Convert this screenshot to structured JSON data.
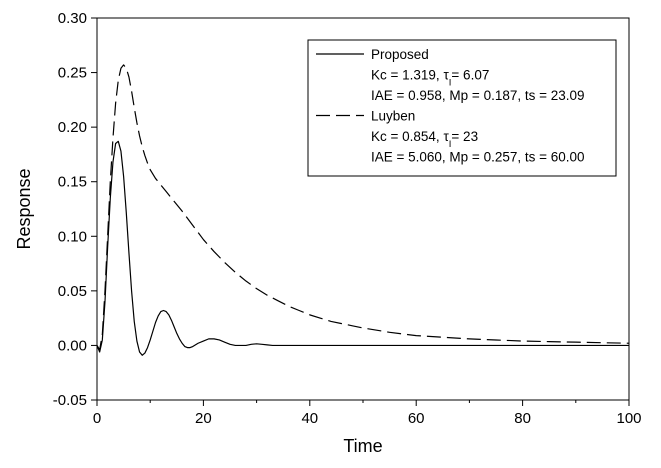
{
  "chart_data": {
    "type": "line",
    "xlabel": "Time",
    "ylabel": "Response",
    "xlim": [
      0,
      100
    ],
    "ylim": [
      -0.05,
      0.3
    ],
    "x_ticks": [
      0,
      20,
      40,
      60,
      80,
      100
    ],
    "y_ticks": [
      -0.05,
      0.0,
      0.05,
      0.1,
      0.15,
      0.2,
      0.25,
      0.3
    ],
    "x_tick_labels": [
      "0",
      "20",
      "40",
      "60",
      "80",
      "100"
    ],
    "y_tick_labels": [
      "-0.05",
      "0.00",
      "0.05",
      "0.10",
      "0.15",
      "0.20",
      "0.25",
      "0.30"
    ],
    "grid": false,
    "legend_position": "top-right",
    "series": [
      {
        "name": "Proposed",
        "style": "solid",
        "color": "#000000",
        "details": [
          {
            "pre": "Kc = 1.319, ",
            "tau": "τ",
            "sub": "I",
            "post": "= 6.07"
          },
          {
            "pre": "IAE = 0.958, Mp = 0.187, ts = 23.09"
          }
        ],
        "x": [
          0,
          0.5,
          1,
          1.5,
          2,
          2.5,
          3,
          3.5,
          4,
          4.5,
          5,
          5.5,
          6,
          6.5,
          7,
          7.5,
          8,
          8.5,
          9,
          9.5,
          10,
          10.5,
          11,
          11.5,
          12,
          12.5,
          13,
          13.5,
          14,
          14.5,
          15,
          15.5,
          16,
          16.5,
          17,
          17.5,
          18,
          19,
          20,
          21,
          22,
          23,
          24,
          25,
          26,
          27,
          28,
          29,
          30,
          31,
          32,
          33,
          34,
          36,
          38,
          40,
          50,
          60,
          70,
          80,
          90,
          100
        ],
        "y": [
          0,
          -0.006,
          0.005,
          0.04,
          0.09,
          0.135,
          0.168,
          0.185,
          0.187,
          0.178,
          0.155,
          0.122,
          0.085,
          0.05,
          0.022,
          0.004,
          -0.006,
          -0.009,
          -0.007,
          -0.002,
          0.005,
          0.013,
          0.021,
          0.027,
          0.031,
          0.032,
          0.031,
          0.028,
          0.023,
          0.017,
          0.011,
          0.006,
          0.002,
          -0.001,
          -0.002,
          -0.002,
          -0.001,
          0.002,
          0.004,
          0.006,
          0.006,
          0.005,
          0.003,
          0.001,
          0.0,
          0.0,
          0.0,
          0.001,
          0.0015,
          0.001,
          0.0005,
          0.0,
          0.0,
          0.0,
          0.0,
          0.0,
          0.0,
          0.0,
          0.0,
          0.0,
          0.0,
          0.0
        ]
      },
      {
        "name": "Luyben",
        "style": "dashed",
        "color": "#000000",
        "details": [
          {
            "pre": "Kc = 0.854, ",
            "tau": "τ",
            "sub": "I",
            "post": "= 23"
          },
          {
            "pre": "IAE = 5.060, Mp = 0.257, ts = 60.00"
          }
        ],
        "x": [
          0,
          0.5,
          1,
          1.5,
          2,
          2.5,
          3,
          3.5,
          4,
          4.5,
          5,
          5.5,
          6,
          6.5,
          7,
          7.5,
          8,
          8.5,
          9,
          9.5,
          10,
          11,
          12,
          13,
          14,
          15,
          16,
          18,
          20,
          22,
          24,
          26,
          28,
          30,
          32,
          34,
          36,
          38,
          40,
          42,
          44,
          46,
          48,
          50,
          55,
          60,
          65,
          70,
          75,
          80,
          85,
          90,
          95,
          100
        ],
        "y": [
          0,
          -0.004,
          0.01,
          0.05,
          0.1,
          0.15,
          0.19,
          0.222,
          0.243,
          0.254,
          0.257,
          0.254,
          0.246,
          0.233,
          0.218,
          0.204,
          0.192,
          0.182,
          0.174,
          0.167,
          0.161,
          0.153,
          0.147,
          0.141,
          0.135,
          0.129,
          0.123,
          0.11,
          0.097,
          0.086,
          0.076,
          0.067,
          0.059,
          0.052,
          0.046,
          0.041,
          0.036,
          0.032,
          0.028,
          0.025,
          0.022,
          0.02,
          0.018,
          0.016,
          0.012,
          0.009,
          0.0075,
          0.006,
          0.005,
          0.004,
          0.0035,
          0.003,
          0.0025,
          0.002
        ]
      }
    ]
  }
}
